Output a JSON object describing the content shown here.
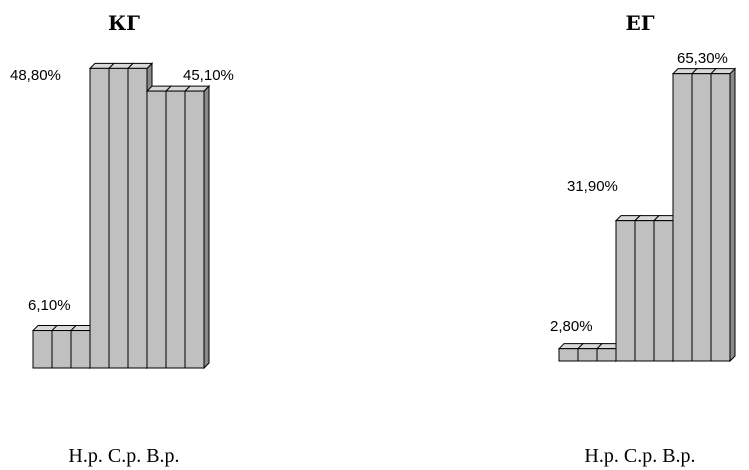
{
  "chart_data": [
    {
      "type": "bar",
      "title": "КГ",
      "categories": [
        "Н.р.",
        "С.р.",
        "В.р."
      ],
      "values": [
        6.1,
        48.8,
        45.1
      ],
      "value_labels": [
        "6,10%",
        "48,80%",
        "45,10%"
      ],
      "unit": "%",
      "style": "3d-stepped-bars",
      "bar_color": "#c0c0c0",
      "edge_color": "#000000",
      "grid": false,
      "legend": "none"
    },
    {
      "type": "bar",
      "title": "ЕГ",
      "categories": [
        "Н.р.",
        "С.р.",
        "В.р."
      ],
      "values": [
        2.8,
        31.9,
        65.3
      ],
      "value_labels": [
        "2,80%",
        "31,90%",
        "65,30%"
      ],
      "unit": "%",
      "style": "3d-stepped-bars",
      "bar_color": "#c0c0c0",
      "edge_color": "#000000",
      "grid": false,
      "legend": "none"
    }
  ]
}
